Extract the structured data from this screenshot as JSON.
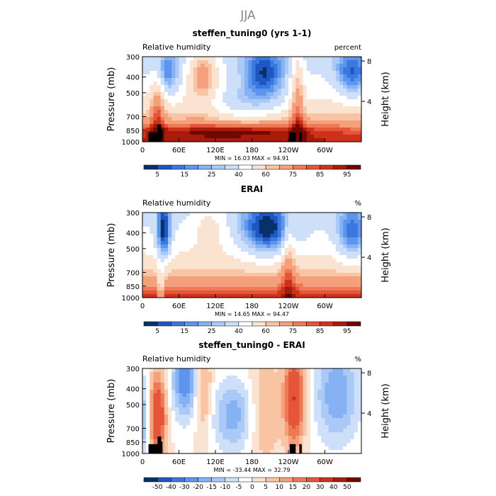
{
  "figure_title": "JJA",
  "chart_data": [
    {
      "type": "heatmap",
      "title": "steffen_tuning0 (yrs 1-1)",
      "left_label": "Relative humidity",
      "right_label": "percent",
      "ylabel": "Pressure (mb)",
      "y2label": "Height (km)",
      "x_ticks": [
        "0",
        "60E",
        "120E",
        "180",
        "120W",
        "60W"
      ],
      "y_ticks": [
        "300",
        "400",
        "500",
        "700",
        "850",
        "1000"
      ],
      "y2_ticks": [
        "8",
        "4"
      ],
      "stats": "MIN =   16.03   MAX =   94.91",
      "colorbar_labels": [
        "5",
        "15",
        "25",
        "40",
        "60",
        "75",
        "85",
        "95"
      ],
      "ylim": [
        1000,
        300
      ],
      "xlim": [
        0,
        360
      ],
      "y_scale": "log-pressure",
      "mountains": true
    },
    {
      "type": "heatmap",
      "title": "ERAI",
      "left_label": "Relative humidity",
      "right_label": "%",
      "ylabel": "Pressure (mb)",
      "y2label": "Height (km)",
      "x_ticks": [
        "0",
        "60E",
        "120E",
        "180",
        "120W",
        "60W"
      ],
      "y_ticks": [
        "300",
        "400",
        "500",
        "700",
        "850",
        "1000"
      ],
      "y2_ticks": [
        "8",
        "4"
      ],
      "stats": "MIN =   14.65   MAX =   94.47",
      "colorbar_labels": [
        "5",
        "15",
        "25",
        "40",
        "60",
        "75",
        "85",
        "95"
      ],
      "ylim": [
        1000,
        300
      ],
      "xlim": [
        0,
        360
      ],
      "y_scale": "log-pressure",
      "mountains": false
    },
    {
      "type": "heatmap",
      "title": "steffen_tuning0 - ERAI",
      "left_label": "Relative humidity",
      "right_label": "%",
      "ylabel": "Pressure (mb)",
      "y2label": "Height (km)",
      "x_ticks": [
        "0",
        "60E",
        "120E",
        "180",
        "120W",
        "60W"
      ],
      "y_ticks": [
        "300",
        "400",
        "500",
        "700",
        "850",
        "1000"
      ],
      "y2_ticks": [
        "8",
        "4"
      ],
      "stats": "MIN =  -33.44   MAX =   32.79",
      "colorbar_labels": [
        "-50",
        "-40",
        "-30",
        "-20",
        "-15",
        "-10",
        "-5",
        "0",
        "5",
        "10",
        "15",
        "20",
        "30",
        "40",
        "50"
      ],
      "ylim": [
        1000,
        300
      ],
      "xlim": [
        0,
        360
      ],
      "y_scale": "log-pressure",
      "mountains": true
    }
  ],
  "colors": {
    "palette": [
      "#08306b",
      "#1f57c2",
      "#3a78e0",
      "#5e95ec",
      "#86b2f3",
      "#aac9f7",
      "#cddff9",
      "#ffffff",
      "#fbe3d2",
      "#f9c4a4",
      "#f5a07c",
      "#ee7a55",
      "#e4553a",
      "#cc3318",
      "#a81b0a",
      "#6e0800"
    ],
    "mountain": "#000000"
  }
}
